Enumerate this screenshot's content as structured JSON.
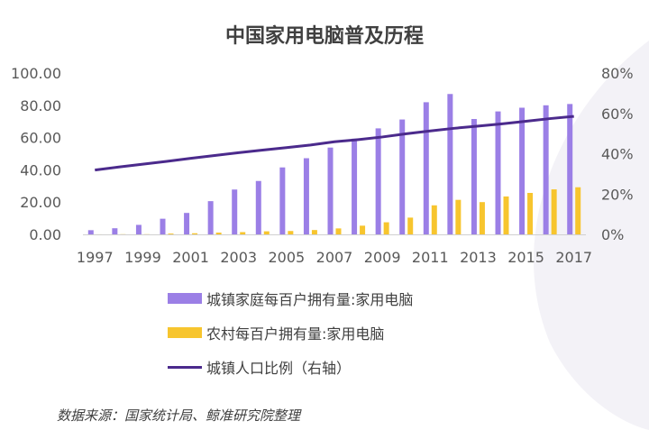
{
  "title": "中国家用电脑普及历程",
  "source": "数据来源：国家统计局、鲸准研究院整理",
  "colors": {
    "urban": "#9b7fe6",
    "rural": "#f7c52e",
    "ratio": "#4b2a8c",
    "axis_text": "#595959",
    "axis_line": "#d0d0d0",
    "background_arc": "#f3f2f7"
  },
  "chart_data": {
    "type": "bar+line",
    "title": "中国家用电脑普及历程",
    "x": [
      1997,
      1998,
      1999,
      2000,
      2001,
      2002,
      2003,
      2004,
      2005,
      2006,
      2007,
      2008,
      2009,
      2010,
      2011,
      2012,
      2013,
      2014,
      2015,
      2016,
      2017
    ],
    "x_tick_labels": [
      "1997",
      "1999",
      "2001",
      "2003",
      "2005",
      "2007",
      "2009",
      "2011",
      "2013",
      "2015",
      "2017"
    ],
    "y_left": {
      "range": [
        0,
        100
      ],
      "ticks": [
        "0.00",
        "20.00",
        "40.00",
        "60.00",
        "80.00",
        "100.00"
      ]
    },
    "y_right": {
      "range": [
        0,
        80
      ],
      "ticks": [
        "0%",
        "20%",
        "40%",
        "60%",
        "80%"
      ]
    },
    "series": [
      {
        "name": "城镇家庭每百户拥有量:家用电脑",
        "type": "bar",
        "axis": "left",
        "values": [
          2.6,
          3.8,
          5.9,
          9.7,
          13.3,
          20.6,
          27.8,
          33.1,
          41.5,
          47.2,
          53.8,
          59.3,
          65.7,
          71.2,
          81.9,
          87.0,
          71.5,
          76.2,
          78.5,
          80.0,
          80.8
        ]
      },
      {
        "name": "农村每百户拥有量:家用电脑",
        "type": "bar",
        "axis": "left",
        "values": [
          0.03,
          0.1,
          0.1,
          0.5,
          0.7,
          1.1,
          1.4,
          1.9,
          2.1,
          2.7,
          3.7,
          5.4,
          7.5,
          10.4,
          18.0,
          21.4,
          20.0,
          23.5,
          25.7,
          27.9,
          29.2
        ]
      },
      {
        "name": "城镇人口比例（右轴）",
        "type": "line",
        "axis": "right",
        "values": [
          31.9,
          33.4,
          34.8,
          36.2,
          37.7,
          39.1,
          40.5,
          41.8,
          43.0,
          44.3,
          45.9,
          47.0,
          48.3,
          49.9,
          51.3,
          52.6,
          53.7,
          54.8,
          56.1,
          57.4,
          58.5
        ]
      }
    ]
  }
}
